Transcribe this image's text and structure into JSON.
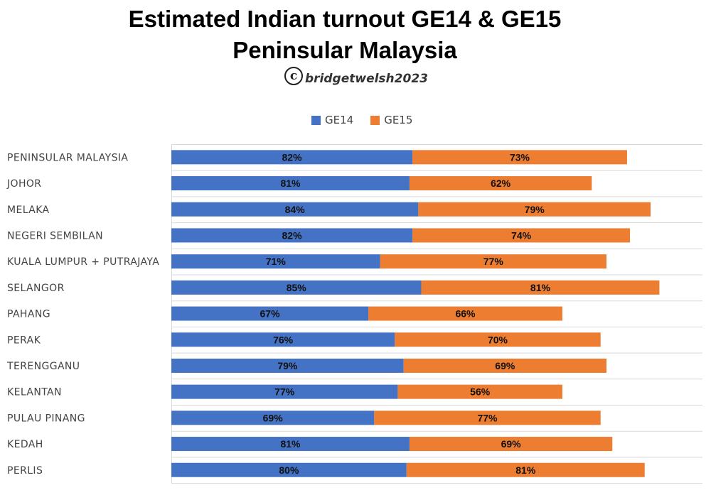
{
  "colors": {
    "ge14": "#4472c4",
    "ge15": "#ed7d31",
    "grid": "#d9d9d9",
    "label": "#444444",
    "value": "#111111"
  },
  "chart_data": {
    "type": "bar",
    "orientation": "horizontal",
    "stacked": true,
    "title": "Estimated Indian turnout GE14 & GE15",
    "subtitle": "Peninsular Malaysia",
    "watermark": "bridgetwelsh2023",
    "legend_position": "top",
    "categories": [
      "PENINSULAR MALAYSIA",
      "JOHOR",
      "MELAKA",
      "NEGERI SEMBILAN",
      "KUALA LUMPUR + PUTRAJAYA",
      "SELANGOR",
      "PAHANG",
      "PERAK",
      "TERENGGANU",
      "KELANTAN",
      "PULAU PINANG",
      "KEDAH",
      "PERLIS"
    ],
    "series": [
      {
        "name": "GE14",
        "values": [
          82,
          81,
          84,
          82,
          71,
          85,
          67,
          76,
          79,
          77,
          69,
          81,
          80
        ]
      },
      {
        "name": "GE15",
        "values": [
          73,
          62,
          79,
          74,
          77,
          81,
          66,
          70,
          69,
          56,
          77,
          69,
          81
        ]
      }
    ],
    "value_suffix": "%"
  }
}
